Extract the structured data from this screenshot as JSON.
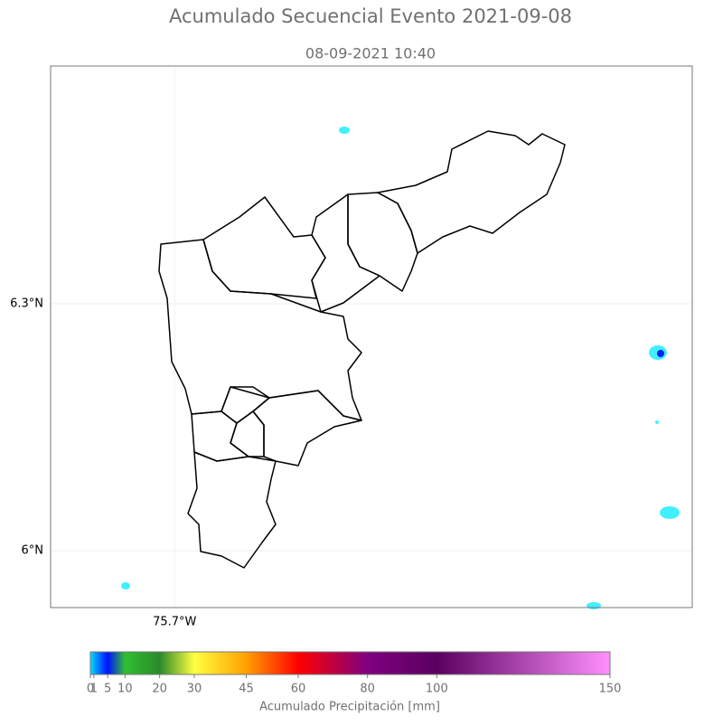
{
  "map": {
    "title": "Acumulado Secuencial Evento 2021-09-08",
    "subtitle": "08-09-2021 10:40",
    "xlim": [
      -75.851,
      -75.07
    ],
    "ylim": [
      5.931,
      6.589
    ],
    "xticks": [
      {
        "value": -75.7,
        "label": "75.7°W"
      }
    ],
    "yticks": [
      {
        "value": 6.3,
        "label": "6.3°N"
      },
      {
        "value": 6.0,
        "label": "6°N"
      }
    ],
    "grid": true
  },
  "colorbar": {
    "label": "Acumulado Precipitación [mm]",
    "lim": [
      0,
      150
    ],
    "ticks": [
      0,
      1,
      5,
      10,
      20,
      30,
      45,
      60,
      80,
      100,
      150
    ],
    "colors": [
      "#00e5ff",
      "#00b0ff",
      "#0010ff",
      "#30c030",
      "#2a8a2a",
      "#ffff40",
      "#ffa000",
      "#ff0000",
      "#800080",
      "#5a0060",
      "#ff90ff"
    ]
  }
}
